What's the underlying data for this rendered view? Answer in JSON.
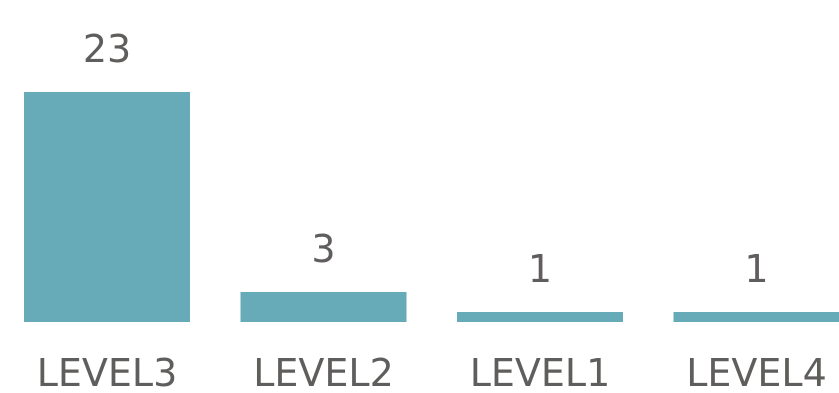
{
  "chart_data": {
    "type": "bar",
    "categories": [
      "LEVEL3",
      "LEVEL2",
      "LEVEL1",
      "LEVEL4"
    ],
    "values": [
      23,
      3,
      1,
      1
    ],
    "title": "",
    "xlabel": "",
    "ylabel": "",
    "ylim": [
      0,
      23
    ],
    "grid": false,
    "legend": "none",
    "bar_color": "#66abb7",
    "text_color": "#605e5c",
    "data_labels": true
  }
}
